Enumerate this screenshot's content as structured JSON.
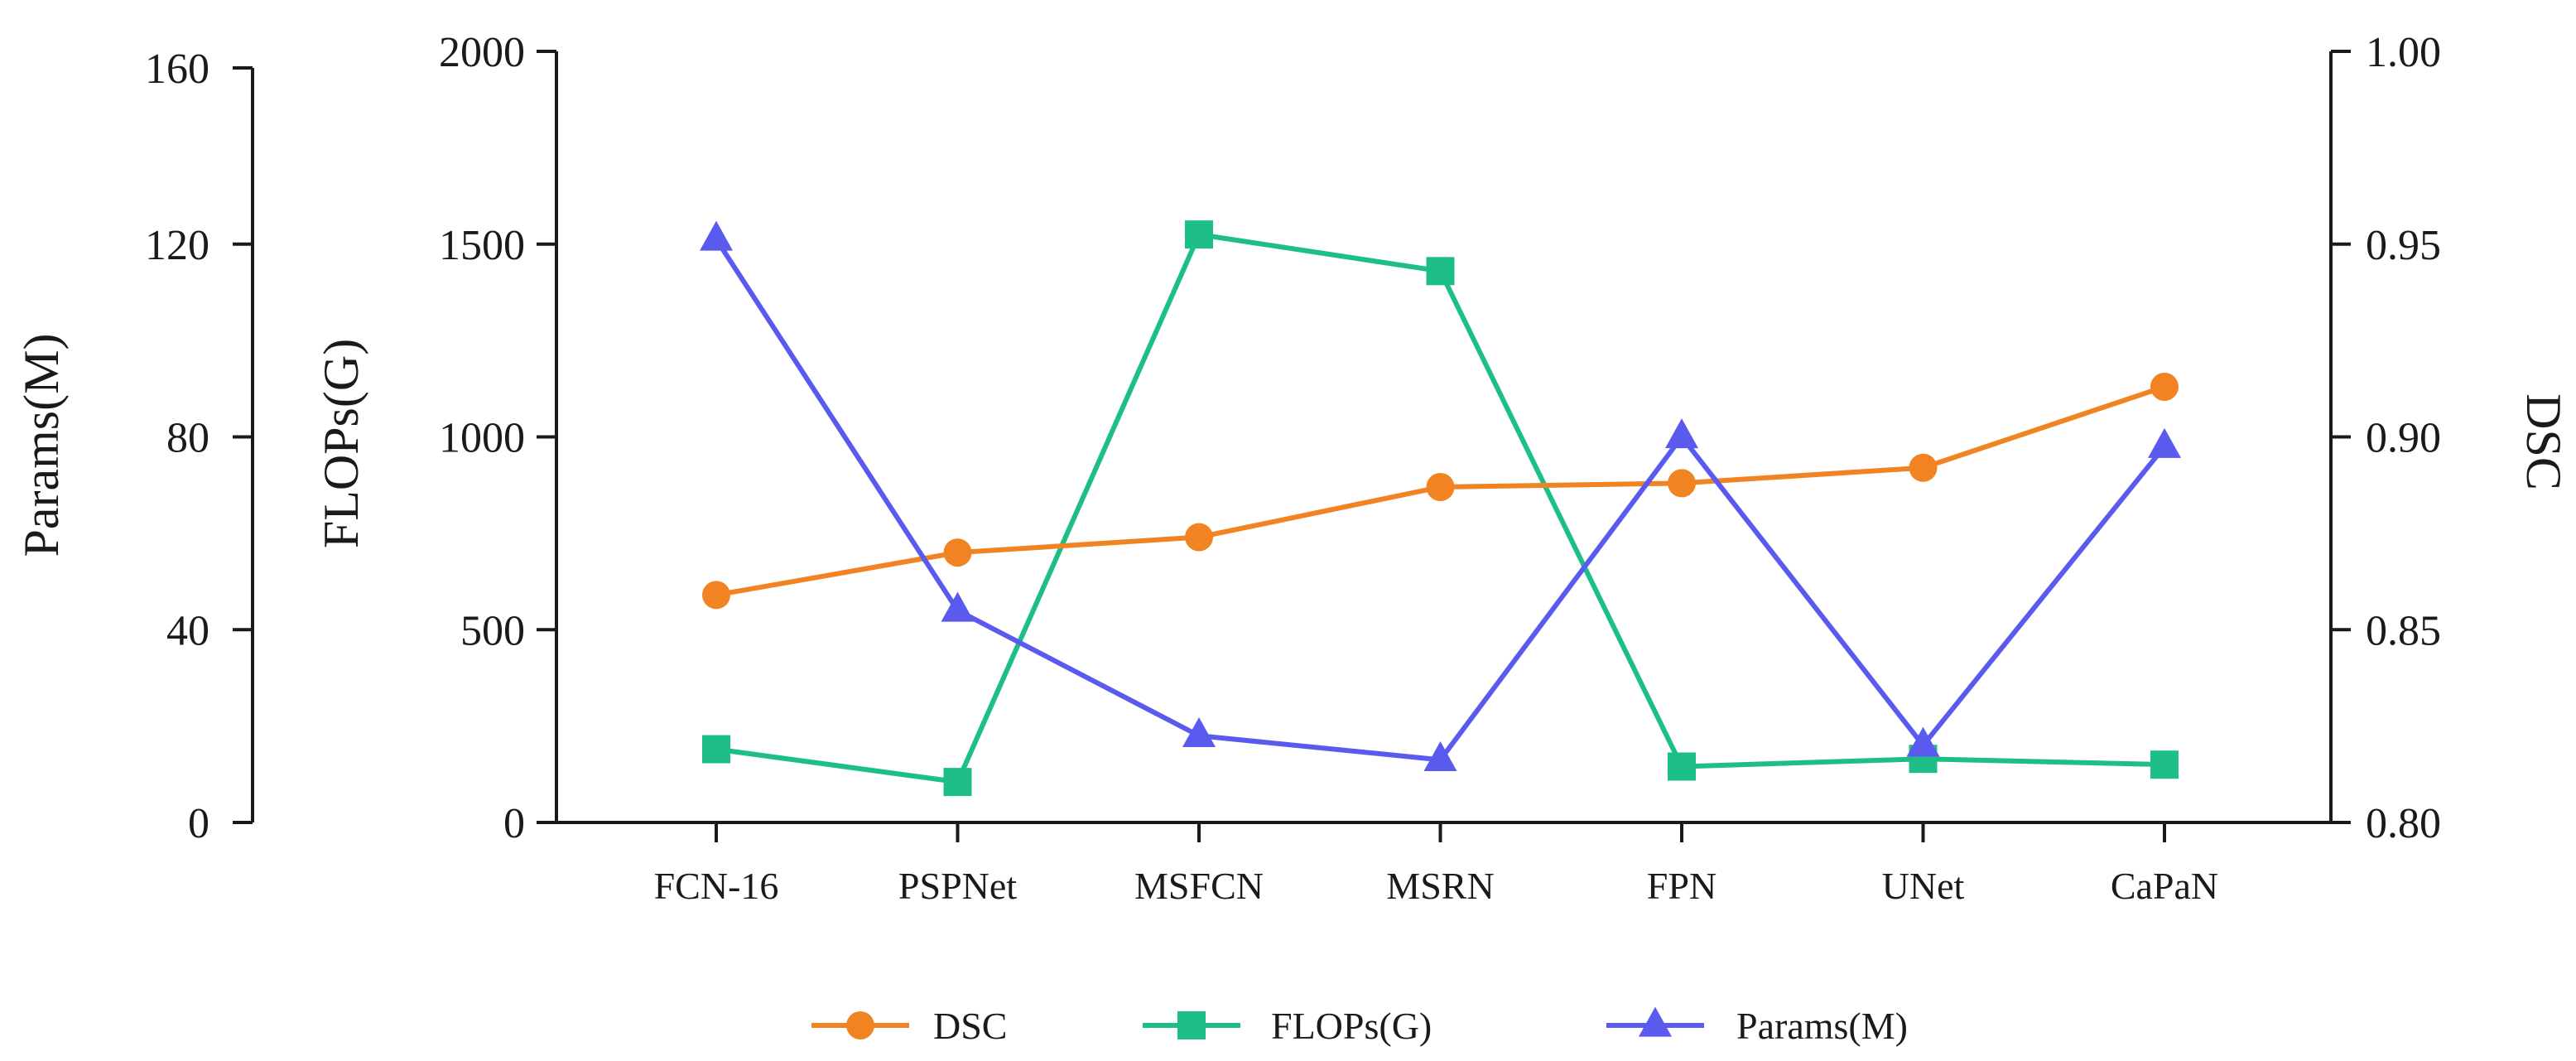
{
  "chart_data": {
    "type": "line",
    "title": "",
    "categories": [
      "FCN-16",
      "PSPNet",
      "MSFCN",
      "MSRN",
      "FPN",
      "UNet",
      "CaPaN"
    ],
    "axes": {
      "params": {
        "label": "Params(M)",
        "ylim": [
          0,
          160
        ],
        "ticks": [
          0,
          40,
          80,
          120,
          160
        ],
        "tick_labels": [
          "0",
          "40",
          "80",
          "120",
          "160"
        ]
      },
      "flops": {
        "label": "FLOPs(G)",
        "ylim": [
          0,
          2000
        ],
        "ticks": [
          0,
          500,
          1000,
          1500,
          2000
        ],
        "tick_labels": [
          "0",
          "500",
          "1000",
          "1500",
          "2000"
        ]
      },
      "dsc": {
        "label": "DSC",
        "ylim": [
          0.8,
          1.0
        ],
        "ticks": [
          0.8,
          0.85,
          0.9,
          0.95,
          1.0
        ],
        "tick_labels": [
          "0.80",
          "0.85",
          "0.90",
          "0.95",
          "1.00"
        ]
      }
    },
    "series": [
      {
        "name": "DSC",
        "legend_label": "DSC",
        "axis": "dsc",
        "color": "#f28322",
        "marker": "circle",
        "values": [
          0.859,
          0.87,
          0.874,
          0.887,
          0.888,
          0.892,
          0.913
        ]
      },
      {
        "name": "FLOPs(G)",
        "legend_label": "FLOPs(G)",
        "axis": "flops",
        "color": "#1dbf87",
        "marker": "square",
        "values": [
          190,
          105,
          1525,
          1430,
          145,
          165,
          150
        ]
      },
      {
        "name": "Params(M)",
        "legend_label": "Params(M)",
        "axis": "params",
        "color": "#5a5aee",
        "marker": "triangle",
        "values": [
          121,
          44,
          18,
          13,
          80,
          16,
          78
        ]
      }
    ],
    "legend_position": "bottom-center",
    "grid": false
  }
}
